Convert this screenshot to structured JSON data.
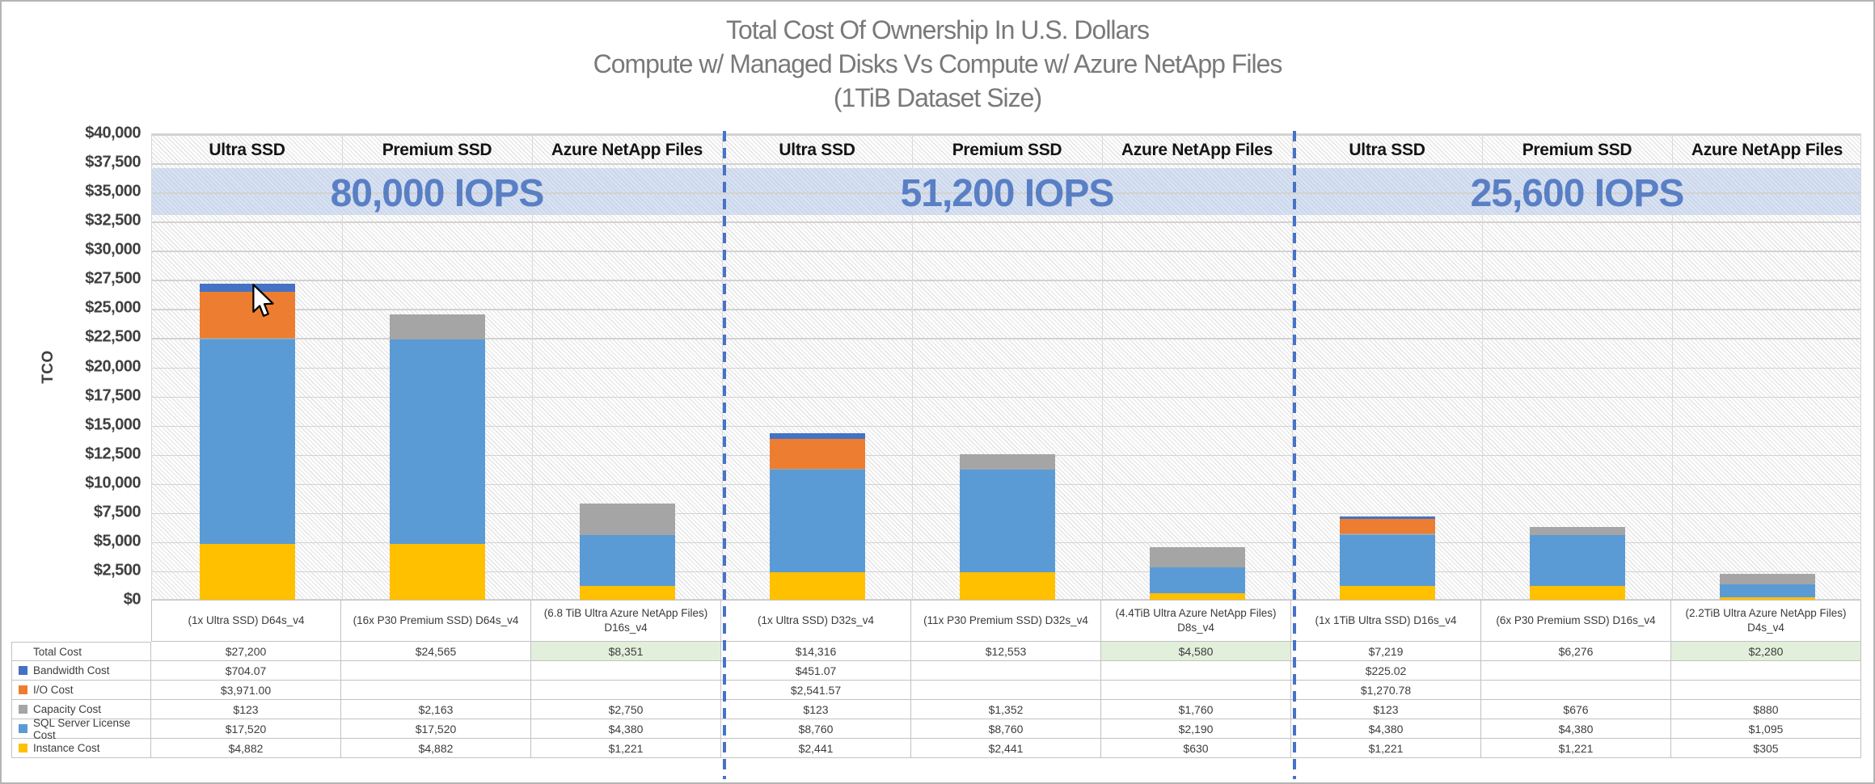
{
  "title": {
    "line1": "Total Cost Of Ownership In U.S. Dollars",
    "line2": "Compute w/ Managed Disks Vs Compute w/ Azure NetApp Files",
    "line3": "(1TiB Dataset Size)"
  },
  "chart_data": {
    "type": "bar",
    "stacked": true,
    "title": "Total Cost Of Ownership In U.S. Dollars\nCompute w/ Managed Disks Vs Compute w/ Azure NetApp Files\n(1TiB Dataset Size)",
    "ylabel": "TCO",
    "ylim": [
      0,
      40000
    ],
    "ytick_step": 2500,
    "grid": true,
    "ytick_labels": [
      "$0",
      "$2,500",
      "$5,000",
      "$7,500",
      "$10,000",
      "$12,500",
      "$15,000",
      "$17,500",
      "$20,000",
      "$22,500",
      "$25,000",
      "$27,500",
      "$30,000",
      "$32,500",
      "$35,000",
      "$37,500",
      "$40,000"
    ],
    "storage_type_headers": [
      "Ultra SSD",
      "Premium SSD",
      "Azure NetApp Files"
    ],
    "iops_groups": [
      "80,000 IOPS",
      "51,200 IOPS",
      "25,600 IOPS"
    ],
    "categories": [
      "(1x Ultra SSD) D64s_v4",
      "(16x P30 Premium SSD) D64s_v4",
      "(6.8 TiB Ultra Azure NetApp Files) D16s_v4",
      "(1x Ultra SSD) D32s_v4",
      "(11x P30 Premium SSD) D32s_v4",
      "(4.4TiB Ultra Azure NetApp Files) D8s_v4",
      "(1x 1TiB Ultra SSD) D16s_v4",
      "(6x P30 Premium SSD) D16s_v4",
      "(2.2TiB Ultra Azure NetApp Files) D4s_v4"
    ],
    "series": [
      {
        "name": "Bandwidth Cost",
        "color": "#4472C4",
        "values": [
          704.07,
          null,
          null,
          451.07,
          null,
          null,
          225.02,
          null,
          null
        ]
      },
      {
        "name": "I/O Cost",
        "color": "#ED7D31",
        "values": [
          3971.0,
          null,
          null,
          2541.57,
          null,
          null,
          1270.78,
          null,
          null
        ]
      },
      {
        "name": "Capacity Cost",
        "color": "#A5A5A5",
        "values": [
          123,
          2163,
          2750,
          123,
          1352,
          1760,
          123,
          676,
          880
        ]
      },
      {
        "name": "SQL Server License Cost",
        "color": "#5B9BD5",
        "values": [
          17520,
          17520,
          4380,
          8760,
          8760,
          2190,
          4380,
          4380,
          1095
        ]
      },
      {
        "name": "Instance Cost",
        "color": "#FFC000",
        "values": [
          4882,
          4882,
          1221,
          2441,
          2441,
          630,
          1221,
          1221,
          305
        ]
      }
    ],
    "stack_order_bottom_to_top": [
      "Instance Cost",
      "SQL Server License Cost",
      "Capacity Cost",
      "I/O Cost",
      "Bandwidth Cost"
    ],
    "totals": [
      27200,
      24565,
      8351,
      14316,
      12553,
      4580,
      7219,
      6276,
      2280
    ],
    "annotations": {
      "total_highlight_color": "#E2EFDA",
      "separator_color": "#4472C4",
      "iops_band_text_color": "#4472C4"
    }
  },
  "table": {
    "rows": [
      {
        "label": "Total Cost",
        "swatch": null,
        "display_values": [
          "$27,200",
          "$24,565",
          "$8,351",
          "$14,316",
          "$12,553",
          "$4,580",
          "$7,219",
          "$6,276",
          "$2,280"
        ],
        "highlight_cols": [
          2,
          5,
          8
        ]
      },
      {
        "label": "Bandwidth Cost",
        "swatch": "#4472C4",
        "display_values": [
          "$704.07",
          "",
          "",
          "$451.07",
          "",
          "",
          "$225.02",
          "",
          ""
        ]
      },
      {
        "label": "I/O Cost",
        "swatch": "#ED7D31",
        "display_values": [
          "$3,971.00",
          "",
          "",
          "$2,541.57",
          "",
          "",
          "$1,270.78",
          "",
          ""
        ]
      },
      {
        "label": "Capacity Cost",
        "swatch": "#A5A5A5",
        "display_values": [
          "$123",
          "$2,163",
          "$2,750",
          "$123",
          "$1,352",
          "$1,760",
          "$123",
          "$676",
          "$880"
        ]
      },
      {
        "label": "SQL Server License Cost",
        "swatch": "#5B9BD5",
        "display_values": [
          "$17,520",
          "$17,520",
          "$4,380",
          "$8,760",
          "$8,760",
          "$2,190",
          "$4,380",
          "$4,380",
          "$1,095"
        ]
      },
      {
        "label": "Instance Cost",
        "swatch": "#FFC000",
        "display_values": [
          "$4,882",
          "$4,882",
          "$1,221",
          "$2,441",
          "$2,441",
          "$630",
          "$1,221",
          "$1,221",
          "$305"
        ]
      }
    ]
  }
}
